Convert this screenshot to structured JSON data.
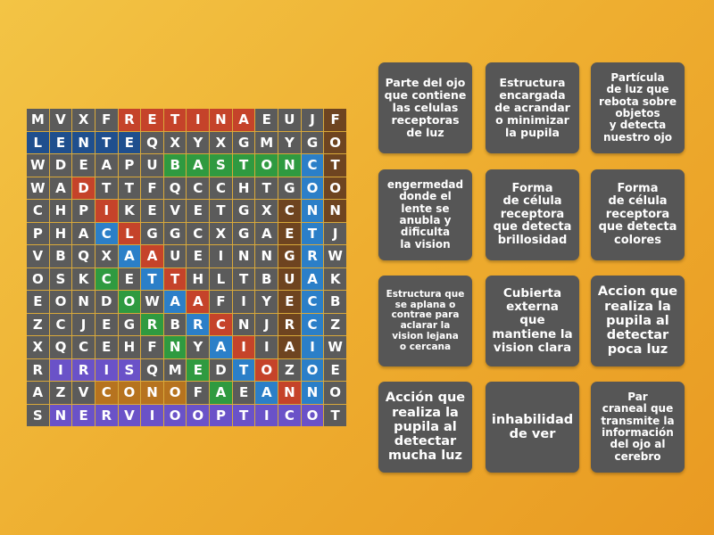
{
  "colors": {
    "g": "#5b5b5b",
    "r": "#c5432a",
    "b": "#1f4f8e",
    "B": "#2b7fc8",
    "G": "#2f9a40",
    "n": "#6e4420",
    "o": "#b6731f",
    "p": "#6a52c8"
  },
  "grid": [
    {
      "letters": "MVXFRETINAEUJF",
      "colors": "ggggrrrrrrgggn"
    },
    {
      "letters": "LENTEQXYXGMYGO",
      "colors": "bbbbbggggggggn"
    },
    {
      "letters": "WDEAPUBASTONCT",
      "colors": "ggggggGGGGGGBn"
    },
    {
      "letters": "WADTTFQCCHTGOO",
      "colors": "ggrgggggggggBn"
    },
    {
      "letters": "CHPIKEVETGXCNN",
      "colors": "gggrgggggggnBn"
    },
    {
      "letters": "PHACLGGCXGAETJ",
      "colors": "gggBrggggggnBg"
    },
    {
      "letters": "VBQXAAUEINNGRW",
      "colors": "ggggBrgggggnBg"
    },
    {
      "letters": "OSKCETTHLTBUAK",
      "colors": "gggGgBrggggnBg"
    },
    {
      "letters": "EONDOWAAFIYECB",
      "colors": "ggggGgBrgggnBg"
    },
    {
      "letters": "ZCJEGRBRCNJRCZ",
      "colors": "gggggGgBrggnBg"
    },
    {
      "letters": "XQCEHFNYAIIAIW",
      "colors": "ggggggGgBrgnBg"
    },
    {
      "letters": "RIRISQMEDTOZOE",
      "colors": "gppppggGgBrgBg"
    },
    {
      "letters": "AZVCONOFAEANNO",
      "colors": "gggoooogGgBrBg"
    },
    {
      "letters": "SNERVIOOPTICOT",
      "colors": "gppppppppppppg"
    }
  ],
  "cards": [
    {
      "text": "Parte del ojo\nque contiene\nlas celulas\nreceptoras\nde luz",
      "size": 12.5
    },
    {
      "text": "Estructura\nencargada\nde acrandar\no minimizar\nla pupila",
      "size": 12.5
    },
    {
      "text": "Partícula\nde luz que\nrebota sobre\nobjetos\ny detecta\nnuestro ojo",
      "size": 12
    },
    {
      "text": "engermedad\ndonde el\nlente se\nanubla y\ndificulta\nla vision",
      "size": 12
    },
    {
      "text": "Forma\nde célula\nreceptora\nque detecta\nbrillosidad",
      "size": 13
    },
    {
      "text": "Forma\nde célula\nreceptora\nque detecta\ncolores",
      "size": 13
    },
    {
      "text": "Estructura que\nse aplana o\ncontrae para\naclarar la\nvision lejana\no cercana",
      "size": 10.5
    },
    {
      "text": "Cubierta\nexterna\nque\nmantiene la\nvision clara",
      "size": 13.5
    },
    {
      "text": "Accion que\nrealiza la\npupila al\ndetectar\npoca luz",
      "size": 14.5
    },
    {
      "text": "Acción que\nrealiza la\npupila al\ndetectar\nmucha luz",
      "size": 14.5
    },
    {
      "text": "inhabilidad\nde ver",
      "size": 14.5
    },
    {
      "text": "Par\ncraneal que\ntransmite la\ninformación\ndel ojo al\ncerebro",
      "size": 12
    }
  ]
}
